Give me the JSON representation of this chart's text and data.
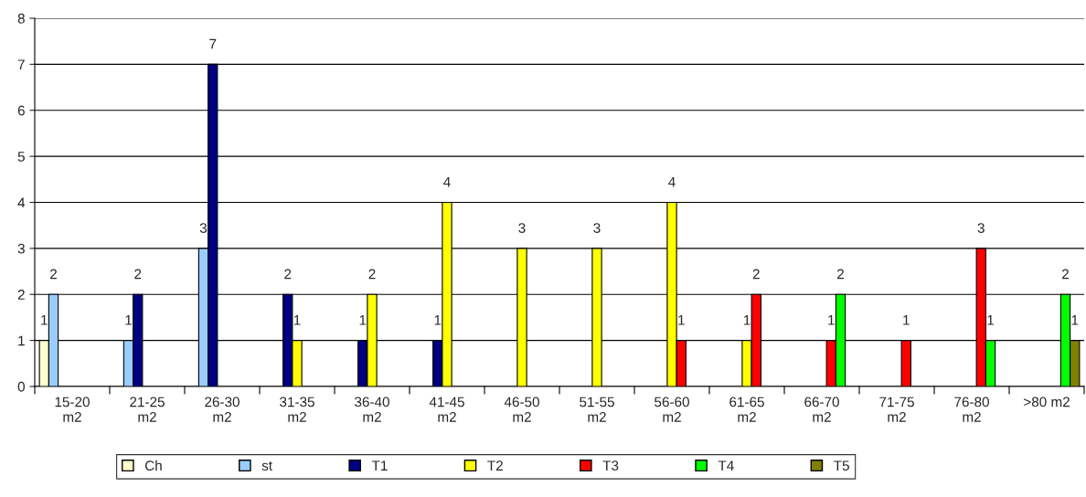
{
  "chart_data": {
    "type": "bar",
    "categories": [
      "15-20 m2",
      "21-25 m2",
      "26-30 m2",
      "31-35 m2",
      "36-40 m2",
      "41-45 m2",
      "46-50 m2",
      "51-55 m2",
      "56-60 m2",
      "61-65 m2",
      "66-70 m2",
      "71-75 m2",
      "76-80 m2",
      ">80 m2"
    ],
    "series": [
      {
        "name": "Ch",
        "color": "#ffffcc",
        "values": [
          1,
          null,
          null,
          null,
          null,
          null,
          null,
          null,
          null,
          null,
          null,
          null,
          null,
          null
        ]
      },
      {
        "name": "st",
        "color": "#99ccff",
        "values": [
          2,
          1,
          3,
          null,
          null,
          null,
          null,
          null,
          null,
          null,
          null,
          null,
          null,
          null
        ]
      },
      {
        "name": "T1",
        "color": "#000080",
        "values": [
          null,
          2,
          7,
          2,
          1,
          1,
          null,
          null,
          null,
          null,
          null,
          null,
          null,
          null
        ]
      },
      {
        "name": "T2",
        "color": "#ffff00",
        "values": [
          null,
          null,
          null,
          1,
          2,
          4,
          3,
          3,
          4,
          1,
          null,
          null,
          null,
          null
        ]
      },
      {
        "name": "T3",
        "color": "#ff0000",
        "values": [
          null,
          null,
          null,
          null,
          null,
          null,
          null,
          null,
          1,
          2,
          1,
          1,
          3,
          null
        ]
      },
      {
        "name": "T4",
        "color": "#00ff00",
        "values": [
          null,
          null,
          null,
          null,
          null,
          null,
          null,
          null,
          null,
          null,
          2,
          null,
          1,
          2
        ]
      },
      {
        "name": "T5",
        "color": "#808000",
        "values": [
          null,
          null,
          null,
          null,
          null,
          null,
          null,
          null,
          null,
          null,
          null,
          null,
          null,
          1
        ]
      }
    ],
    "ylim": [
      0,
      8
    ],
    "yticks": [
      0,
      1,
      2,
      3,
      4,
      5,
      6,
      7,
      8
    ],
    "grid": "y",
    "data_labels": true,
    "legend": "bottom"
  }
}
